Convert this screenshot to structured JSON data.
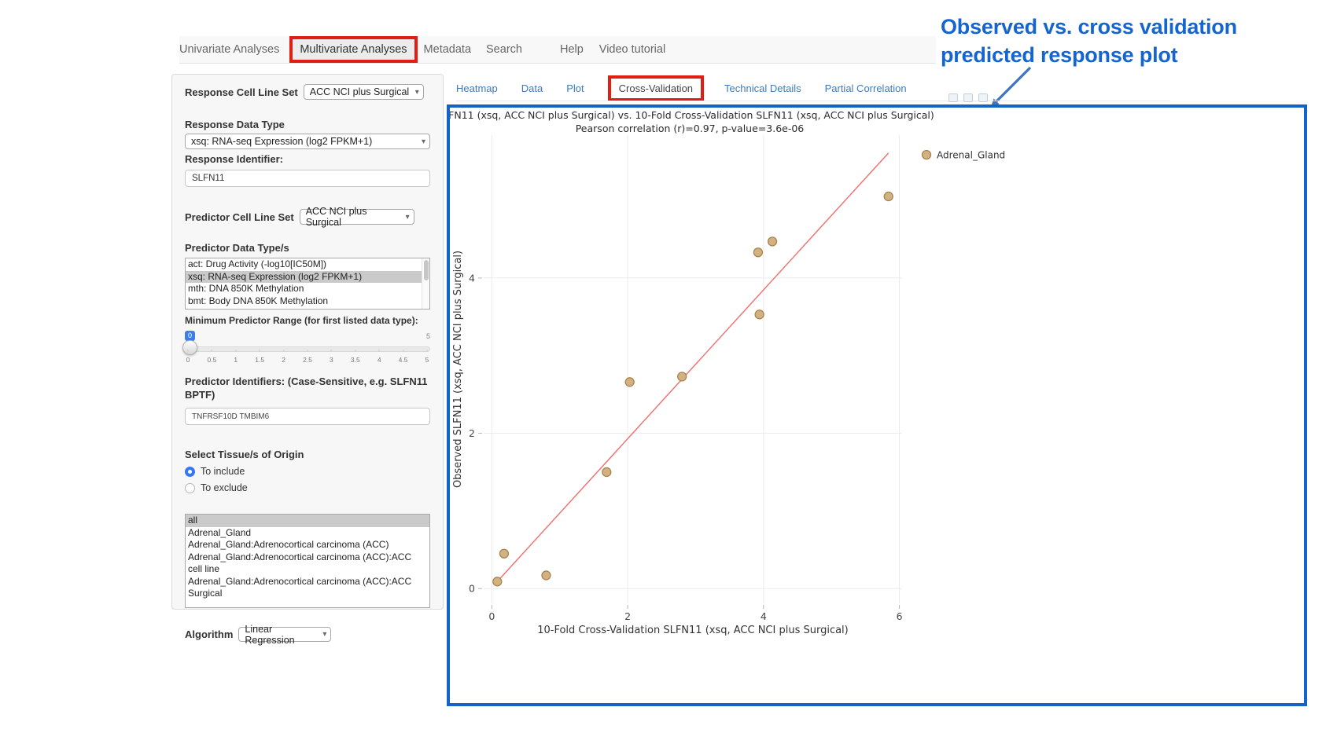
{
  "colors": {
    "highlight_red": "#E01E13",
    "plot_border_blue": "#1563C6",
    "annotation_blue": "#1565D0",
    "tab_link_blue": "#3E7CB8",
    "slider_badge_blue": "#3D7FE8",
    "radio_blue": "#3478F6",
    "marker_fill": "#D2B183",
    "marker_edge": "#A8854F",
    "trendline_red": "#F26D6D"
  },
  "nav": {
    "items": [
      {
        "label": "Univariate Analyses",
        "active": false
      },
      {
        "label": "Multivariate Analyses",
        "active": true
      },
      {
        "label": "Metadata",
        "active": false
      },
      {
        "label": "Search",
        "active": false
      },
      {
        "label": "Help",
        "active": false
      },
      {
        "label": "Video tutorial",
        "active": false
      }
    ]
  },
  "annotation": {
    "line1": "Observed vs. cross validation",
    "line2": "predicted response plot"
  },
  "sidebar": {
    "response_cell_line_set": {
      "label": "Response Cell Line Set",
      "value": "ACC NCI plus Surgical"
    },
    "response_data_type": {
      "label": "Response Data Type",
      "value": "xsq: RNA-seq Expression (log2 FPKM+1)"
    },
    "response_identifier": {
      "label": "Response Identifier:",
      "value": "SLFN11"
    },
    "predictor_cell_line_set": {
      "label": "Predictor Cell Line Set",
      "value": "ACC NCI plus Surgical"
    },
    "predictor_data_types": {
      "label": "Predictor Data Type/s",
      "options": [
        "act: Drug Activity (-log10[IC50M])",
        "xsq: RNA-seq Expression (log2 FPKM+1)",
        "mth: DNA 850K Methylation",
        "bmt: Body DNA 850K Methylation"
      ],
      "selected_index": 1
    },
    "min_predictor_range": {
      "label": "Minimum Predictor Range (for first listed data type):",
      "value": "0",
      "max_label": "5",
      "ticks": [
        "0",
        "0.5",
        "1",
        "1.5",
        "2",
        "2.5",
        "3",
        "3.5",
        "4",
        "4.5",
        "5"
      ]
    },
    "predictor_identifiers": {
      "label": "Predictor Identifiers: (Case-Sensitive, e.g. SLFN11 BPTF)",
      "value": "TNFRSF10D TMBIM6"
    },
    "tissue_origin": {
      "label": "Select Tissue/s of Origin",
      "radios": [
        {
          "label": "To include",
          "checked": true
        },
        {
          "label": "To exclude",
          "checked": false
        }
      ],
      "options": [
        "all",
        "Adrenal_Gland",
        "Adrenal_Gland:Adrenocortical carcinoma (ACC)",
        "Adrenal_Gland:Adrenocortical carcinoma (ACC):ACC cell line",
        "Adrenal_Gland:Adrenocortical carcinoma (ACC):ACC Surgical"
      ],
      "selected_index": 0
    },
    "algorithm": {
      "label": "Algorithm",
      "value": "Linear Regression"
    }
  },
  "tabs": [
    {
      "label": "Heatmap",
      "active": false
    },
    {
      "label": "Data",
      "active": false
    },
    {
      "label": "Plot",
      "active": false
    },
    {
      "label": "Cross-Validation",
      "active": true
    },
    {
      "label": "Technical Details",
      "active": false
    },
    {
      "label": "Partial Correlation",
      "active": false
    }
  ],
  "chart_data": {
    "type": "scatter",
    "title": ".FN11 (xsq, ACC NCI plus Surgical) vs. 10-Fold Cross-Validation SLFN11 (xsq, ACC NCI plus Surgical)",
    "subtitle": "Pearson correlation (r)=0.97, p-value=3.6e-06",
    "xlabel": "10-Fold Cross-Validation SLFN11 (xsq, ACC NCI plus Surgical)",
    "ylabel": "Observed SLFN11 (xsq, ACC NCI plus Surgical)",
    "xlim": [
      -0.12,
      6.04
    ],
    "ylim": [
      -0.19,
      5.84
    ],
    "x_ticks": [
      0,
      2,
      4,
      6
    ],
    "y_ticks": [
      0,
      2,
      4
    ],
    "grid": true,
    "legend": {
      "position": "top-right-outside",
      "entries": [
        {
          "label": "Adrenal_Gland",
          "color": "#D2B183"
        }
      ]
    },
    "series": [
      {
        "name": "Adrenal_Gland",
        "marker_color": "#D2B183",
        "marker_edge": "#A8854F",
        "points": [
          [
            0.08,
            0.09
          ],
          [
            0.18,
            0.45
          ],
          [
            0.8,
            0.17
          ],
          [
            1.69,
            1.5
          ],
          [
            2.03,
            2.66
          ],
          [
            2.8,
            2.73
          ],
          [
            3.92,
            4.33
          ],
          [
            3.94,
            3.53
          ],
          [
            4.13,
            4.47
          ],
          [
            5.84,
            5.05
          ]
        ]
      }
    ],
    "trendline": {
      "color": "#F26D6D",
      "from": [
        0.08,
        0.09
      ],
      "to": [
        5.84,
        5.61
      ]
    }
  }
}
